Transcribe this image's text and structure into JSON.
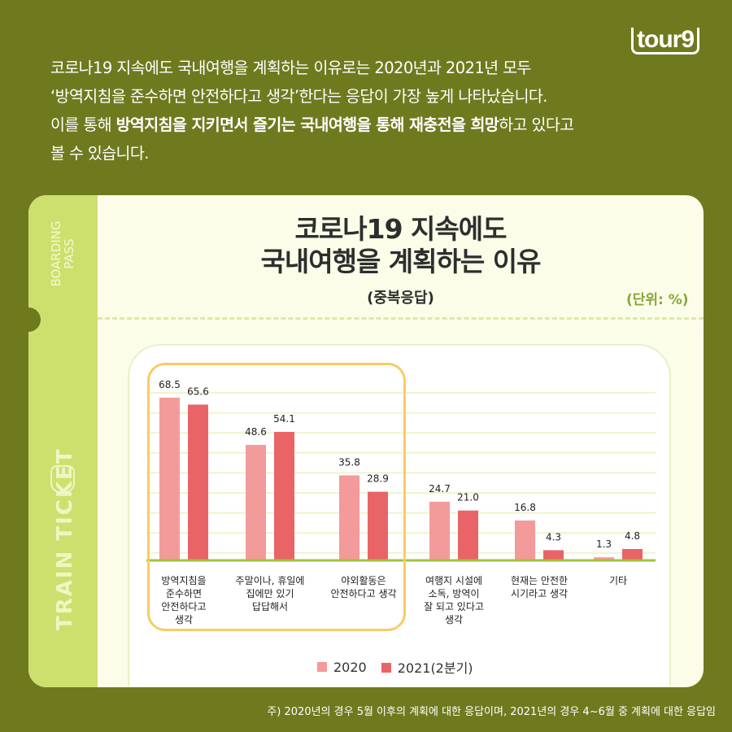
{
  "logo": "tour9",
  "intro": {
    "line1": "코로나19 지속에도 국내여행을 계획하는 이유로는 2020년과 2021년 모두",
    "line2": "‘방역지침을 준수하면 안전하다고 생각’한다는 응답이 가장 높게 나타났습니다.",
    "line3_pre": "이를 통해 ",
    "line3_bold1": "방역지침을 지키면서 즐기는 국내여행을 통해 재충전을 희망",
    "line3_post": "하고 있다고",
    "line4": "볼 수 있습니다."
  },
  "ticket": {
    "boarding": "BOARDING\nPASS",
    "train": "TRAIN TICKET"
  },
  "footnote": "주) 2020년의 경우 5월 이후의 계획에 대한 응답이며, 2021년의 경우 4~6월 중 계획에 대한 응답임",
  "colors": {
    "background": "#6f7a1f",
    "series2020": "#f39a9a",
    "series2021": "#e96467",
    "highlight": "#f8cc63",
    "baseline": "#9cc43a"
  },
  "chart_data": {
    "type": "bar",
    "title_line1": "코로나19 지속에도",
    "title_line2": "국내여행을 계획하는 이유",
    "subtitle": "(중복응답)",
    "unit": "(단위: %)",
    "categories": [
      "방역지침을\n준수하면\n안전하다고\n생각",
      "주말이나, 휴일에\n집에만 있기\n답답해서",
      "야외활동은\n안전하다고 생각",
      "여행지 시설에\n소독, 방역이\n잘 되고 있다고\n생각",
      "현재는 안전한\n시기라고 생각",
      "기타"
    ],
    "series": [
      {
        "name": "2020",
        "values": [
          68.5,
          48.6,
          35.8,
          24.7,
          16.8,
          1.3
        ]
      },
      {
        "name": "2021(2분기)",
        "values": [
          65.6,
          54.1,
          28.9,
          21.0,
          4.3,
          4.8
        ]
      }
    ],
    "value_labels": [
      [
        "68.5",
        "48.6",
        "35.8",
        "24.7",
        "16.8",
        "1.3"
      ],
      [
        "65.6",
        "54.1",
        "28.9",
        "21.0",
        "4.3",
        "4.8"
      ]
    ],
    "highlighted_categories": [
      0,
      1,
      2
    ],
    "legend": "bottom",
    "grid": true
  }
}
